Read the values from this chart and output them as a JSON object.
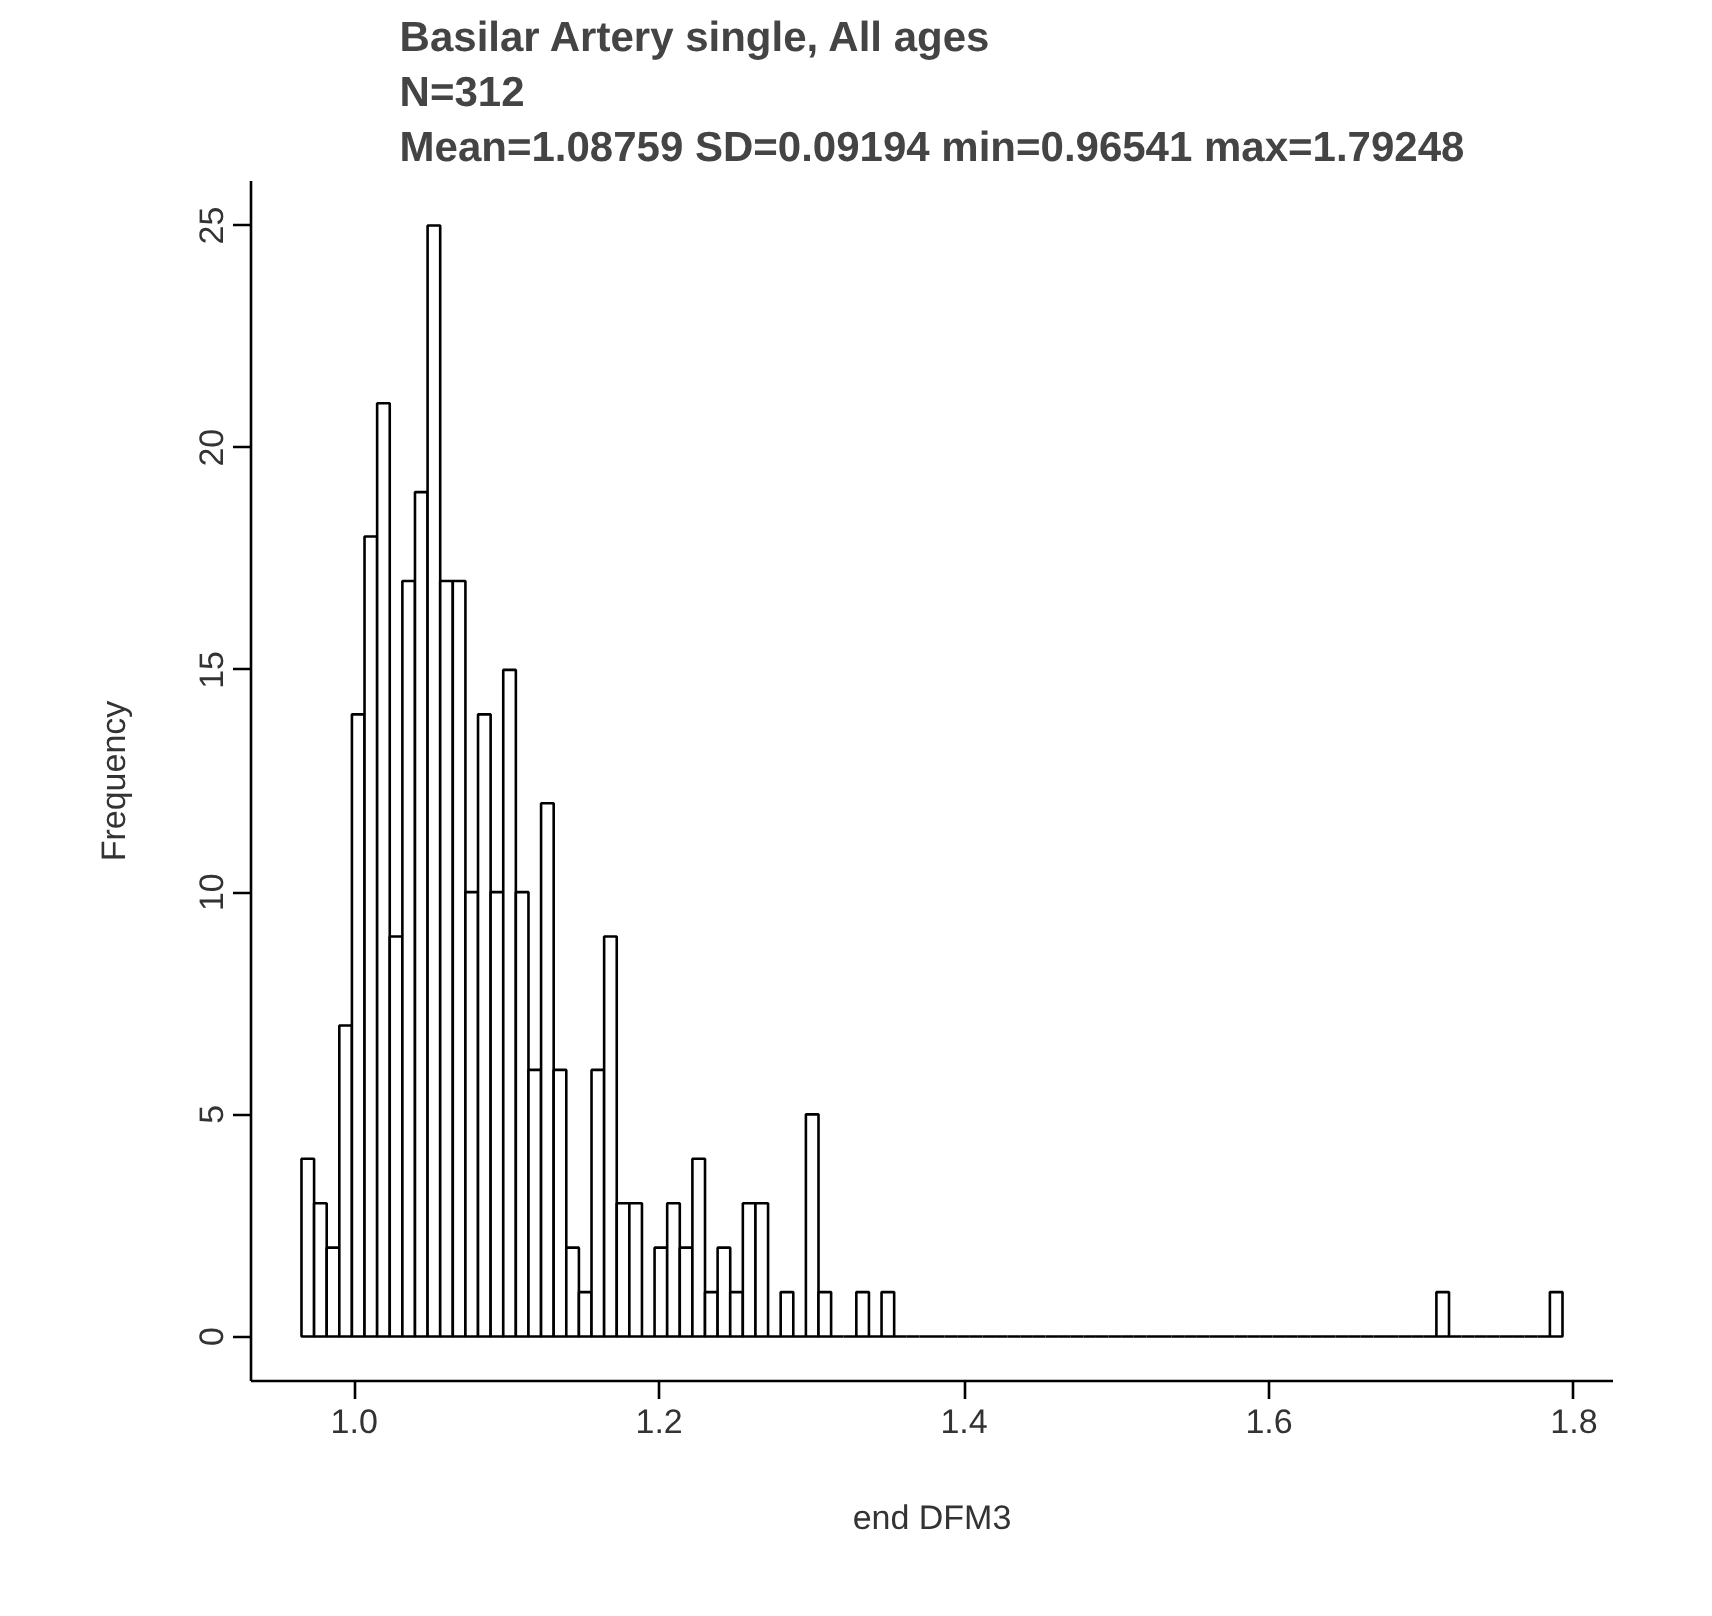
{
  "chart_data": {
    "type": "histogram",
    "title": "Basilar Artery single, All ages\nN=312\nMean=1.08759 SD=0.09194 min=0.96541 max=1.79248",
    "xlabel": "end DFM3",
    "ylabel": "Frequency",
    "bins": [
      0.96541,
      0.97368,
      0.98195,
      0.99022,
      0.99849,
      1.00676,
      1.01503,
      1.0233,
      1.03158,
      1.03985,
      1.04812,
      1.05639,
      1.06466,
      1.07293,
      1.0812,
      1.08947,
      1.09774,
      1.10601,
      1.11428,
      1.12255,
      1.13082,
      1.13909,
      1.14737,
      1.15564,
      1.16391,
      1.17218,
      1.18045,
      1.18872,
      1.19699,
      1.20526,
      1.21353,
      1.2218,
      1.23007,
      1.23834,
      1.24661,
      1.25488,
      1.26316,
      1.27143,
      1.2797,
      1.28797,
      1.29624,
      1.30451,
      1.31278,
      1.32105,
      1.32932,
      1.33759,
      1.34586,
      1.35413,
      1.3624,
      1.37067,
      1.37895,
      1.38722,
      1.39549,
      1.40376,
      1.41203,
      1.4203,
      1.42857,
      1.43684,
      1.44511,
      1.45338,
      1.46165,
      1.46992,
      1.47819,
      1.48646,
      1.49474,
      1.50301,
      1.51128,
      1.51955,
      1.52782,
      1.53609,
      1.54436,
      1.55263,
      1.5609,
      1.56917,
      1.57744,
      1.58571,
      1.59398,
      1.60225,
      1.61053,
      1.6188,
      1.62707,
      1.63534,
      1.64361,
      1.65188,
      1.66015,
      1.66842,
      1.67669,
      1.68496,
      1.69323,
      1.7015,
      1.70977,
      1.71804,
      1.72632,
      1.73459,
      1.74286,
      1.75113,
      1.7594,
      1.76767,
      1.77594,
      1.78421,
      1.79248
    ],
    "values": [
      4,
      3,
      2,
      7,
      14,
      18,
      21,
      9,
      17,
      19,
      25,
      17,
      17,
      10,
      14,
      10,
      15,
      10,
      6,
      12,
      6,
      2,
      1,
      6,
      9,
      3,
      3,
      0,
      2,
      3,
      2,
      4,
      1,
      2,
      1,
      3,
      3,
      0,
      1,
      0,
      5,
      1,
      0,
      0,
      1,
      0,
      1,
      0,
      0,
      0,
      0,
      0,
      0,
      0,
      0,
      0,
      0,
      0,
      0,
      0,
      0,
      0,
      0,
      0,
      0,
      0,
      0,
      0,
      0,
      0,
      0,
      0,
      0,
      0,
      0,
      0,
      0,
      0,
      0,
      0,
      0,
      0,
      0,
      0,
      0,
      0,
      0,
      0,
      0,
      0,
      1,
      0,
      0,
      0,
      0,
      0,
      0,
      0,
      0,
      1
    ],
    "xlim": [
      0.9323,
      1.8256
    ],
    "ylim": [
      -1,
      26
    ],
    "xticks": [
      {
        "value": 1.0,
        "label": "1.0"
      },
      {
        "value": 1.2,
        "label": "1.2"
      },
      {
        "value": 1.4,
        "label": "1.4"
      },
      {
        "value": 1.6,
        "label": "1.6"
      },
      {
        "value": 1.8,
        "label": "1.8"
      }
    ],
    "yticks": [
      0,
      5,
      10,
      15,
      20,
      25
    ],
    "grid": false
  }
}
